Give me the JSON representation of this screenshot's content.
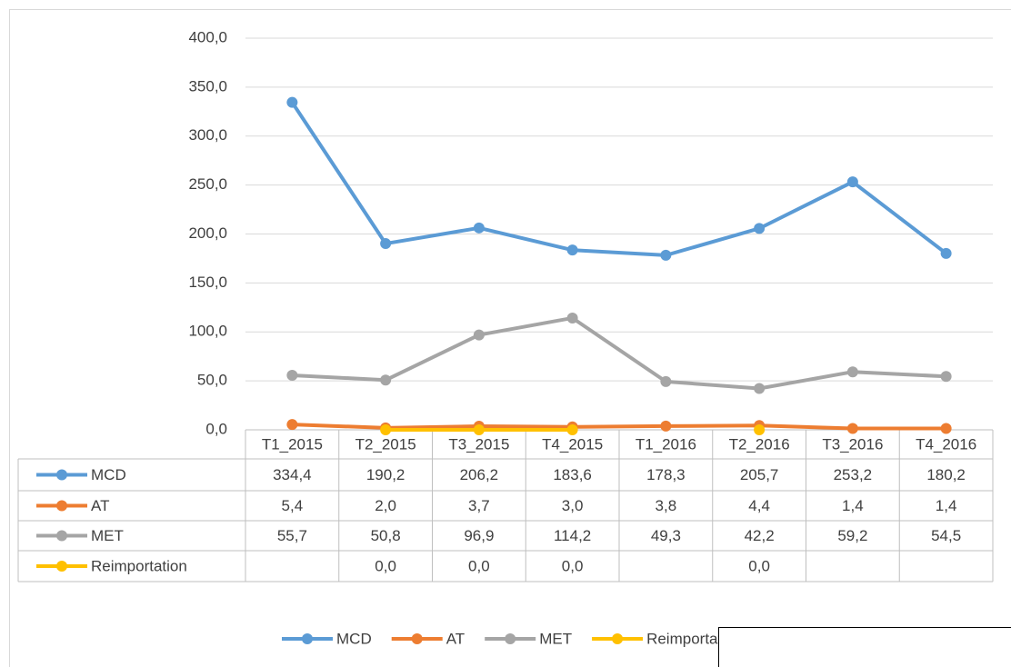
{
  "chart_data": {
    "type": "line",
    "categories": [
      "T1_2015",
      "T2_2015",
      "T3_2015",
      "T4_2015",
      "T1_2016",
      "T2_2016",
      "T3_2016",
      "T4_2016"
    ],
    "series": [
      {
        "name": "MCD",
        "color": "#5b9bd5",
        "values": [
          334.4,
          190.2,
          206.2,
          183.6,
          178.3,
          205.7,
          253.2,
          180.2
        ],
        "value_labels": [
          "334,4",
          "190,2",
          "206,2",
          "183,6",
          "178,3",
          "205,7",
          "253,2",
          "180,2"
        ]
      },
      {
        "name": "AT",
        "color": "#ed7d31",
        "values": [
          5.4,
          2.0,
          3.7,
          3.0,
          3.8,
          4.4,
          1.4,
          1.4
        ],
        "value_labels": [
          "5,4",
          "2,0",
          "3,7",
          "3,0",
          "3,8",
          "4,4",
          "1,4",
          "1,4"
        ]
      },
      {
        "name": "MET",
        "color": "#a5a5a5",
        "values": [
          55.7,
          50.8,
          96.9,
          114.2,
          49.3,
          42.2,
          59.2,
          54.5
        ],
        "value_labels": [
          "55,7",
          "50,8",
          "96,9",
          "114,2",
          "49,3",
          "42,2",
          "59,2",
          "54,5"
        ]
      },
      {
        "name": "Reimportation",
        "color": "#ffc000",
        "values": [
          null,
          0.0,
          0.0,
          0.0,
          null,
          0.0,
          null,
          null
        ],
        "value_labels": [
          null,
          "0,0",
          "0,0",
          "0,0",
          null,
          "0,0",
          null,
          null
        ]
      }
    ],
    "ylim": [
      0,
      400
    ],
    "yticks": [
      {
        "value": 0,
        "label": "0,0"
      },
      {
        "value": 50,
        "label": "50,0"
      },
      {
        "value": 100,
        "label": "100,0"
      },
      {
        "value": 150,
        "label": "150,0"
      },
      {
        "value": 200,
        "label": "200,0"
      },
      {
        "value": 250,
        "label": "250,0"
      },
      {
        "value": 300,
        "label": "300,0"
      },
      {
        "value": 350,
        "label": "350,0"
      },
      {
        "value": 400,
        "label": "400,0"
      }
    ],
    "grid": true,
    "legend": "bottom",
    "data_table": true
  }
}
